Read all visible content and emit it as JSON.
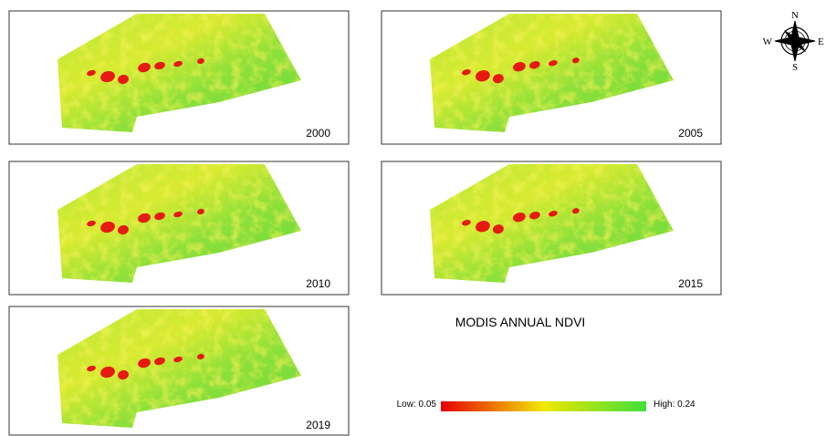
{
  "title": "MODIS ANNUAL NDVI",
  "panels": [
    {
      "year": "2000"
    },
    {
      "year": "2005"
    },
    {
      "year": "2010"
    },
    {
      "year": "2015"
    },
    {
      "year": "2019"
    }
  ],
  "legend": {
    "low": "Low: 0.05",
    "high": "High: 0.24"
  },
  "compass": {
    "north": "N",
    "south": "S",
    "west": "W",
    "east": "E"
  }
}
